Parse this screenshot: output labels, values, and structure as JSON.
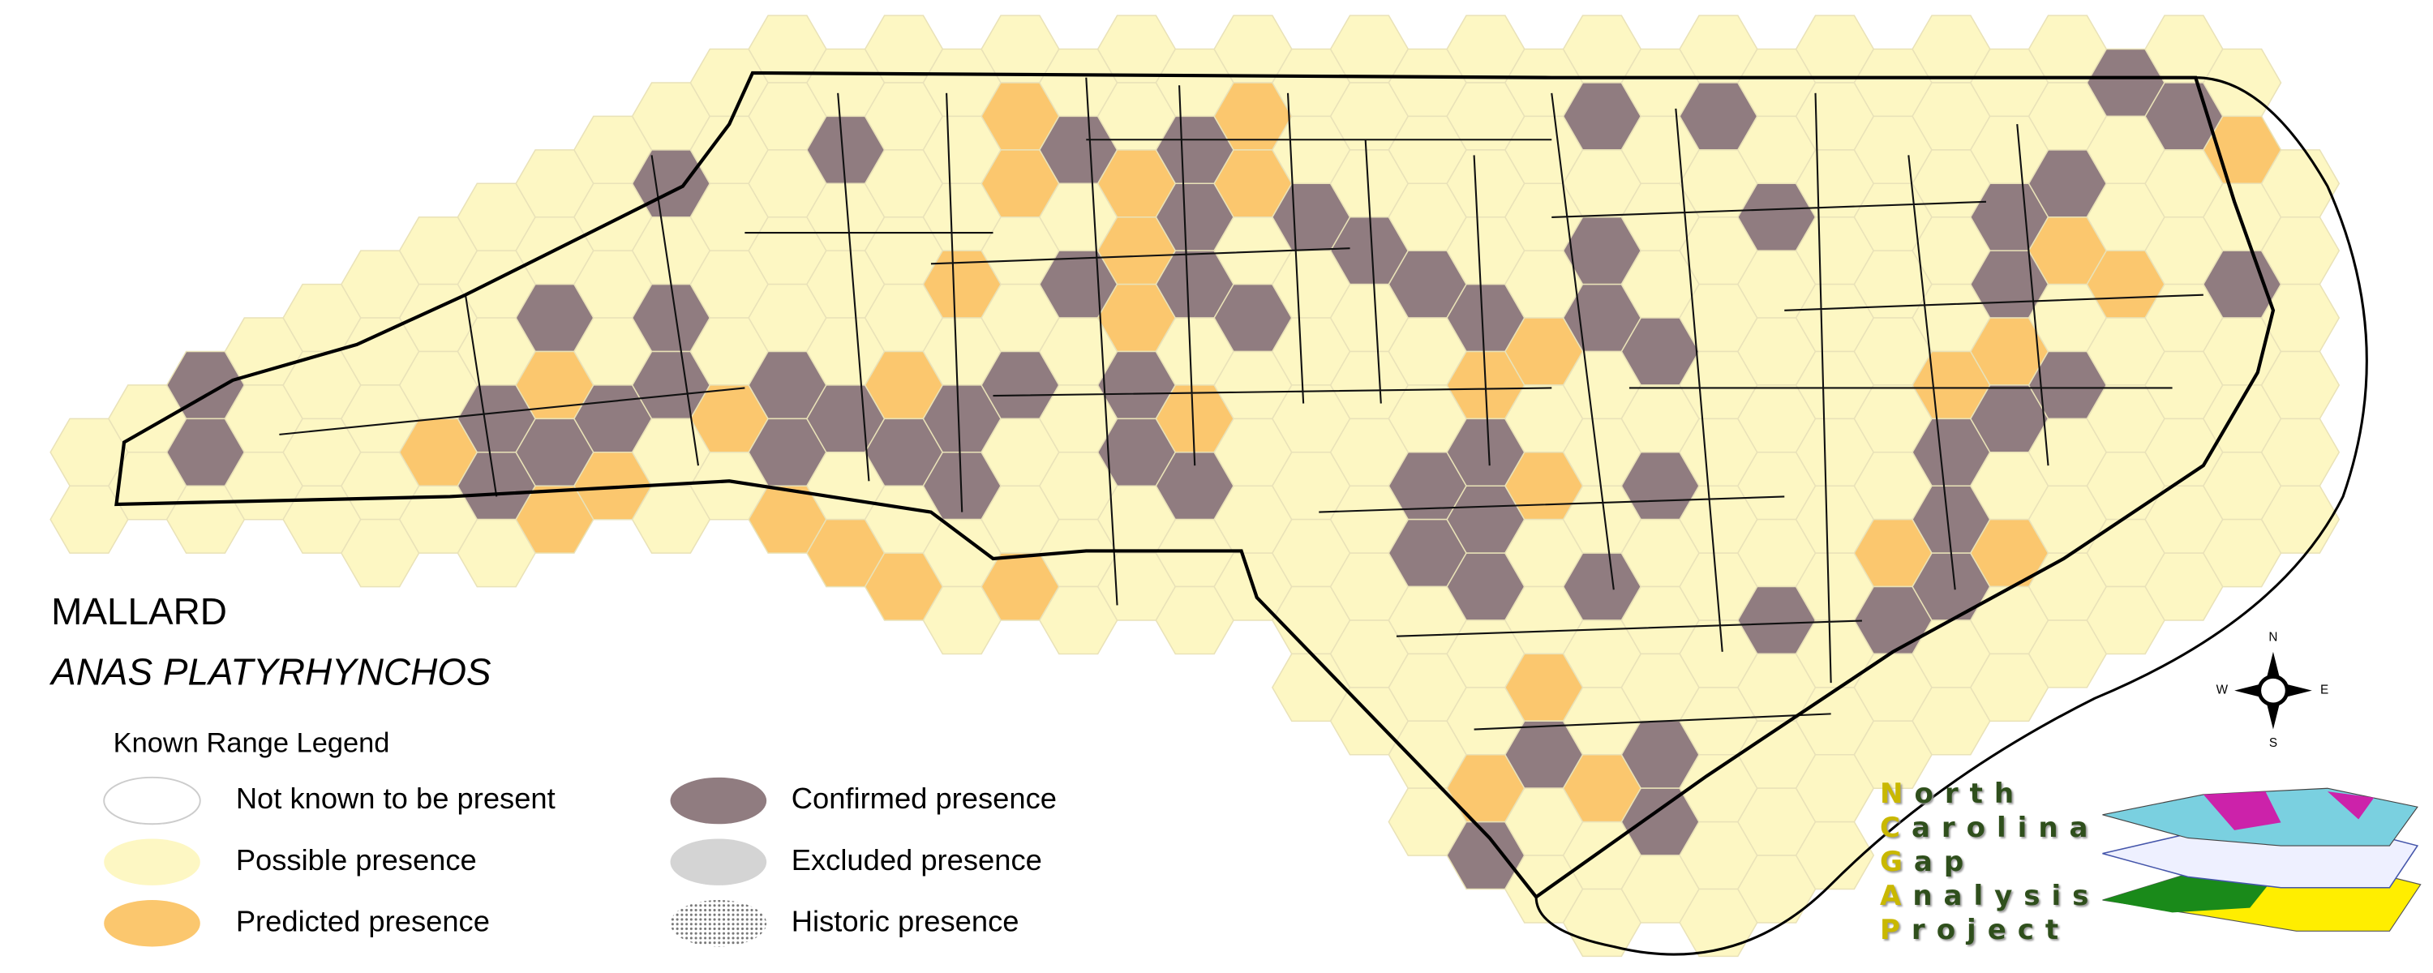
{
  "title": {
    "common_name": "MALLARD",
    "scientific_name": "ANAS PLATYRHYNCHOS"
  },
  "legend": {
    "title": "Known Range Legend",
    "items": [
      {
        "label": "Not known to be present",
        "color": "#ffffff"
      },
      {
        "label": "Possible presence",
        "color": "#fdf7c3"
      },
      {
        "label": "Predicted presence",
        "color": "#fbc76e"
      },
      {
        "label": "Confirmed presence",
        "color": "#907c80"
      },
      {
        "label": "Excluded presence",
        "color": "#d4d4d4"
      },
      {
        "label": "Historic presence",
        "color": "#9a9a9a"
      }
    ]
  },
  "compass": {
    "n": "N",
    "s": "S",
    "e": "E",
    "w": "W"
  },
  "logo": {
    "lines": [
      "North",
      "Carolina",
      "Gap",
      "Analysis",
      "Project"
    ]
  }
}
